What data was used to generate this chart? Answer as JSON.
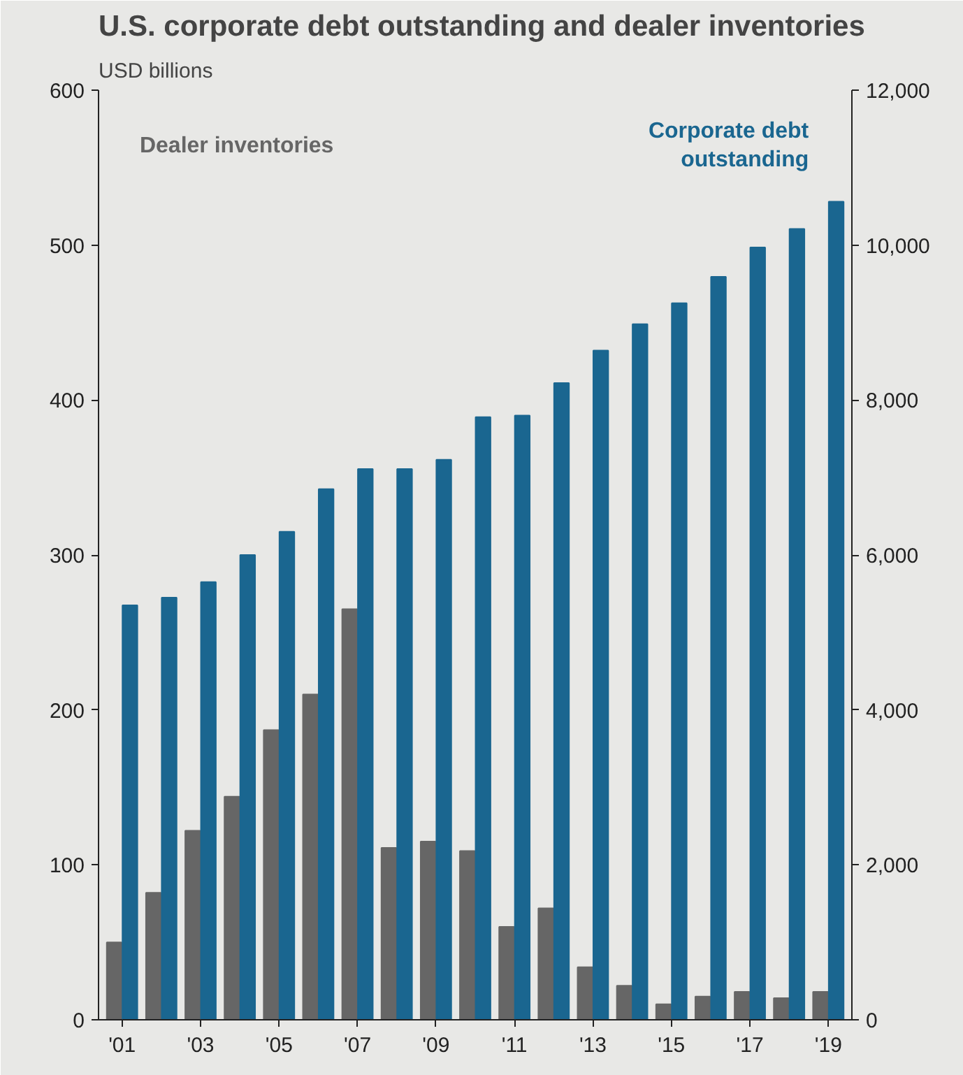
{
  "chart_data": {
    "type": "bar",
    "title": "U.S. corporate debt outstanding and dealer inventories",
    "subtitle": "USD billions",
    "categories": [
      "'01",
      null,
      "'03",
      null,
      "'05",
      null,
      "'07",
      null,
      "'09",
      null,
      "'11",
      null,
      "'13",
      null,
      "'15",
      null,
      "'17",
      null,
      "'19"
    ],
    "series": [
      {
        "name": "Dealer inventories",
        "color": "#666666",
        "axis": "y",
        "values": [
          50,
          82,
          122,
          144,
          187,
          210,
          265,
          111,
          115,
          109,
          60,
          72,
          34,
          22,
          10,
          15,
          18,
          14,
          18
        ]
      },
      {
        "name": "Corporate debt outstanding",
        "color": "#1a6690",
        "axis": "y2",
        "values": [
          5350,
          5450,
          5650,
          6000,
          6300,
          6850,
          7110,
          7110,
          7230,
          7780,
          7800,
          8220,
          8640,
          8980,
          9250,
          9590,
          9970,
          10210,
          10560
        ]
      }
    ],
    "ylim": [
      0,
      600
    ],
    "yticks": [
      0,
      100,
      200,
      300,
      400,
      500,
      600
    ],
    "y2lim": [
      0,
      12000
    ],
    "y2ticks": [
      0,
      {
        "value": 2000,
        "label": "2,000"
      },
      {
        "value": 4000,
        "label": "4,000"
      },
      {
        "value": 6000,
        "label": "6,000"
      },
      {
        "value": 8000,
        "label": "8,000"
      },
      {
        "value": 10000,
        "label": "10,000"
      },
      {
        "value": 12000,
        "label": "12,000"
      }
    ],
    "y2label": null
  }
}
